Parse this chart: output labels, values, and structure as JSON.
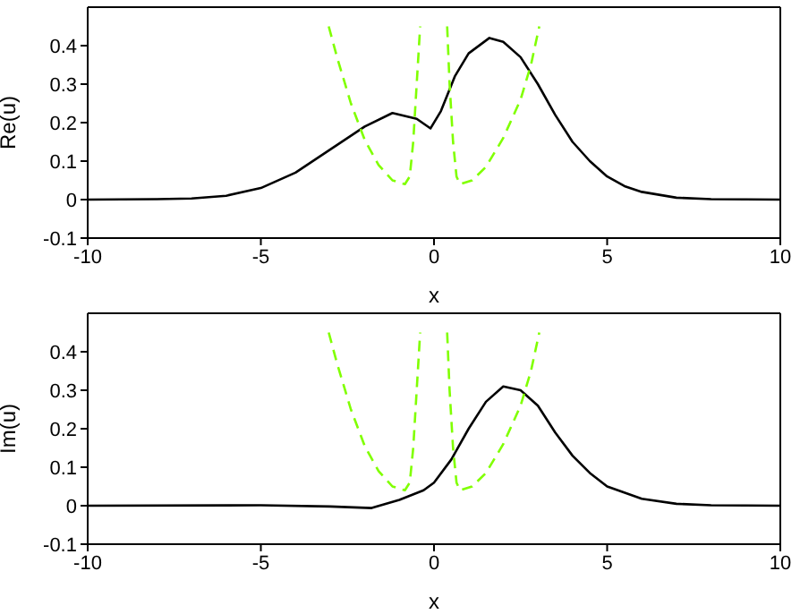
{
  "chart_data": [
    {
      "type": "line",
      "xlabel": "x",
      "ylabel": "Re(u)",
      "xlim": [
        -10,
        10
      ],
      "ylim": [
        -0.1,
        0.5
      ],
      "xticks": [
        -10,
        -5,
        0,
        5,
        10
      ],
      "yticks": [
        -0.1,
        0,
        0.1,
        0.2,
        0.3,
        0.4
      ],
      "marker": "none",
      "series": [
        {
          "color": "#000000",
          "line_style": "solid",
          "x": [
            -10,
            -8,
            -7,
            -6,
            -5,
            -4,
            -3,
            -2,
            -1.2,
            -0.5,
            -0.1,
            0.2,
            0.6,
            1,
            1.6,
            2,
            2.5,
            3,
            3.5,
            4,
            4.5,
            5,
            5.5,
            6,
            7,
            8,
            10
          ],
          "values": [
            0,
            0.001,
            0.003,
            0.01,
            0.03,
            0.07,
            0.13,
            0.19,
            0.225,
            0.21,
            0.185,
            0.23,
            0.32,
            0.38,
            0.42,
            0.41,
            0.37,
            0.3,
            0.22,
            0.15,
            0.1,
            0.06,
            0.035,
            0.02,
            0.005,
            0.001,
            0
          ]
        },
        {
          "color": "#80ff00",
          "line_style": "dashed",
          "x": [
            -3.04,
            -2.8,
            -2.4,
            -2,
            -1.6,
            -1.2,
            -0.84,
            -0.7,
            -0.6,
            -0.5,
            -0.4,
            0,
            0.38,
            0.45,
            0.55,
            0.65,
            0.75,
            1.1,
            1.5,
            2,
            2.5,
            2.8,
            3.04
          ],
          "values": [
            0.45,
            0.37,
            0.25,
            0.155,
            0.09,
            0.05,
            0.04,
            0.06,
            0.15,
            0.3,
            0.45,
            null,
            0.45,
            0.3,
            0.15,
            0.06,
            0.04,
            0.05,
            0.085,
            0.16,
            0.26,
            0.35,
            0.45
          ]
        }
      ]
    },
    {
      "type": "line",
      "xlabel": "x",
      "ylabel": "Im(u)",
      "xlim": [
        -10,
        10
      ],
      "ylim": [
        -0.1,
        0.5
      ],
      "xticks": [
        -10,
        -5,
        0,
        5,
        10
      ],
      "yticks": [
        -0.1,
        0,
        0.1,
        0.2,
        0.3,
        0.4
      ],
      "marker": "none",
      "series": [
        {
          "color": "#000000",
          "line_style": "solid",
          "x": [
            -10,
            -5,
            -3,
            -1.8,
            -1,
            -0.3,
            0,
            0.5,
            1,
            1.5,
            2,
            2.5,
            3,
            3.5,
            4,
            4.5,
            5,
            6,
            7,
            8,
            10
          ],
          "values": [
            0,
            0.001,
            -0.002,
            -0.006,
            0.015,
            0.04,
            0.06,
            0.12,
            0.2,
            0.27,
            0.31,
            0.3,
            0.26,
            0.19,
            0.13,
            0.085,
            0.05,
            0.018,
            0.005,
            0.001,
            0
          ]
        },
        {
          "color": "#80ff00",
          "line_style": "dashed",
          "x": [
            -3.04,
            -2.8,
            -2.4,
            -2,
            -1.6,
            -1.2,
            -0.84,
            -0.7,
            -0.6,
            -0.5,
            -0.4,
            0,
            0.38,
            0.45,
            0.55,
            0.65,
            0.75,
            1.1,
            1.5,
            2,
            2.5,
            2.8,
            3.04
          ],
          "values": [
            0.45,
            0.37,
            0.25,
            0.155,
            0.09,
            0.05,
            0.04,
            0.06,
            0.15,
            0.3,
            0.45,
            null,
            0.45,
            0.3,
            0.15,
            0.06,
            0.04,
            0.05,
            0.085,
            0.16,
            0.26,
            0.35,
            0.45
          ]
        }
      ]
    }
  ]
}
